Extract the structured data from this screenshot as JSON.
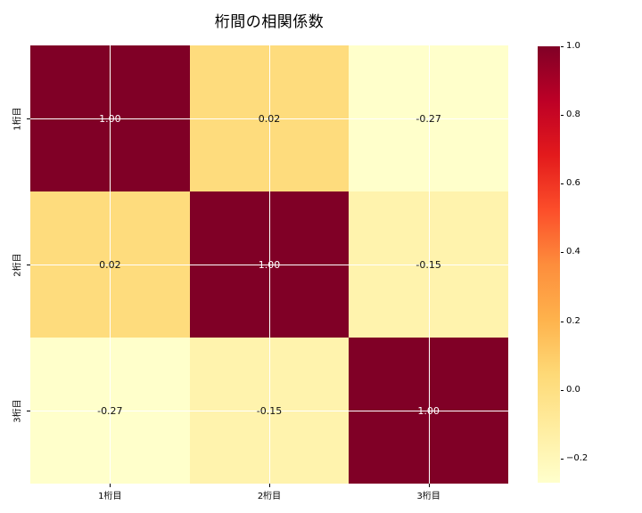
{
  "title": "桁間の相関係数",
  "chart_data": {
    "type": "heatmap",
    "title": "桁間の相関係数",
    "categories": [
      "1桁目",
      "2桁目",
      "3桁目"
    ],
    "row_labels": [
      "1桁目",
      "2桁目",
      "3桁目"
    ],
    "col_labels": [
      "1桁目",
      "2桁目",
      "3桁目"
    ],
    "matrix": [
      [
        1.0,
        0.02,
        -0.27
      ],
      [
        0.02,
        1.0,
        -0.15
      ],
      [
        -0.27,
        -0.15,
        1.0
      ]
    ],
    "cell_labels": [
      [
        "1.00",
        "0.02",
        "-0.27"
      ],
      [
        "0.02",
        "1.00",
        "-0.15"
      ],
      [
        "-0.27",
        "-0.15",
        "1.00"
      ]
    ],
    "cell_colors": [
      [
        "#800026",
        "#fedc7d",
        "#ffffcb"
      ],
      [
        "#fedc7d",
        "#800026",
        "#fff3ad"
      ],
      [
        "#ffffcb",
        "#fff3ad",
        "#800026"
      ]
    ],
    "cell_text_colors": [
      [
        "#ffffff",
        "#111111",
        "#111111"
      ],
      [
        "#111111",
        "#ffffff",
        "#111111"
      ],
      [
        "#111111",
        "#111111",
        "#ffffff"
      ]
    ],
    "colormap": "YlOrRd",
    "vmin": -0.27,
    "vmax": 1.0,
    "grid": true,
    "gridline_color": "#ffffff",
    "colorbar": {
      "position": "right",
      "tick_labels": [
        "1.0",
        "0.8",
        "0.6",
        "0.4",
        "0.2",
        "0.0",
        "−0.2"
      ],
      "tick_values": [
        1.0,
        0.8,
        0.6,
        0.4,
        0.2,
        0.0,
        -0.2
      ],
      "gradient_stops": [
        {
          "pos": 0,
          "color": "#ffffcc"
        },
        {
          "pos": 12.5,
          "color": "#ffeda0"
        },
        {
          "pos": 25,
          "color": "#fed976"
        },
        {
          "pos": 37.5,
          "color": "#feb24c"
        },
        {
          "pos": 50,
          "color": "#fd8d3c"
        },
        {
          "pos": 62.5,
          "color": "#fc4e2a"
        },
        {
          "pos": 75,
          "color": "#e31a1c"
        },
        {
          "pos": 87.5,
          "color": "#bd0026"
        },
        {
          "pos": 100,
          "color": "#800026"
        }
      ]
    }
  }
}
